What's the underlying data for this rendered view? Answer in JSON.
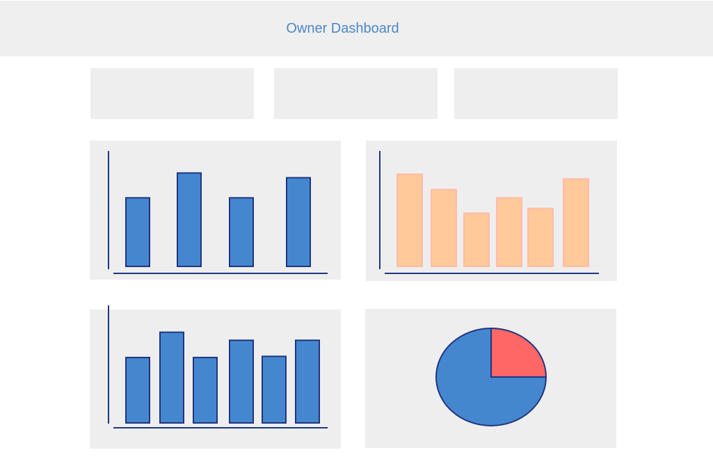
{
  "header": {
    "title": "Owner Dashboard"
  },
  "kpi_cards": [
    {
      "label": ""
    },
    {
      "label": ""
    },
    {
      "label": ""
    }
  ],
  "colors": {
    "primary_bar": "#4587cf",
    "bar_stroke": "#1f3580",
    "accent_bar": "#ffc999",
    "accent_stroke": "#ffbbaa",
    "pie_highlight": "#ff6666",
    "axis": "#1f3580",
    "panel_bg": "#eeeeee",
    "title": "#4d87c6"
  },
  "chart_data": [
    {
      "type": "bar",
      "categories": [
        "",
        "",
        "",
        ""
      ],
      "values": [
        58,
        79,
        58,
        75
      ],
      "ylim": [
        0,
        100
      ],
      "title": "",
      "xlabel": "",
      "ylabel": ""
    },
    {
      "type": "bar",
      "categories": [
        "",
        "",
        "",
        "",
        "",
        ""
      ],
      "values": [
        78,
        65,
        45,
        58,
        49,
        74
      ],
      "ylim": [
        0,
        100
      ],
      "title": "",
      "xlabel": "",
      "ylabel": ""
    },
    {
      "type": "bar",
      "categories": [
        "",
        "",
        "",
        "",
        "",
        ""
      ],
      "values": [
        57,
        79,
        57,
        72,
        58,
        72
      ],
      "ylim": [
        0,
        100
      ],
      "title": "",
      "xlabel": "",
      "ylabel": ""
    },
    {
      "type": "pie",
      "labels": [
        "",
        ""
      ],
      "values": [
        25,
        75
      ],
      "title": ""
    }
  ]
}
